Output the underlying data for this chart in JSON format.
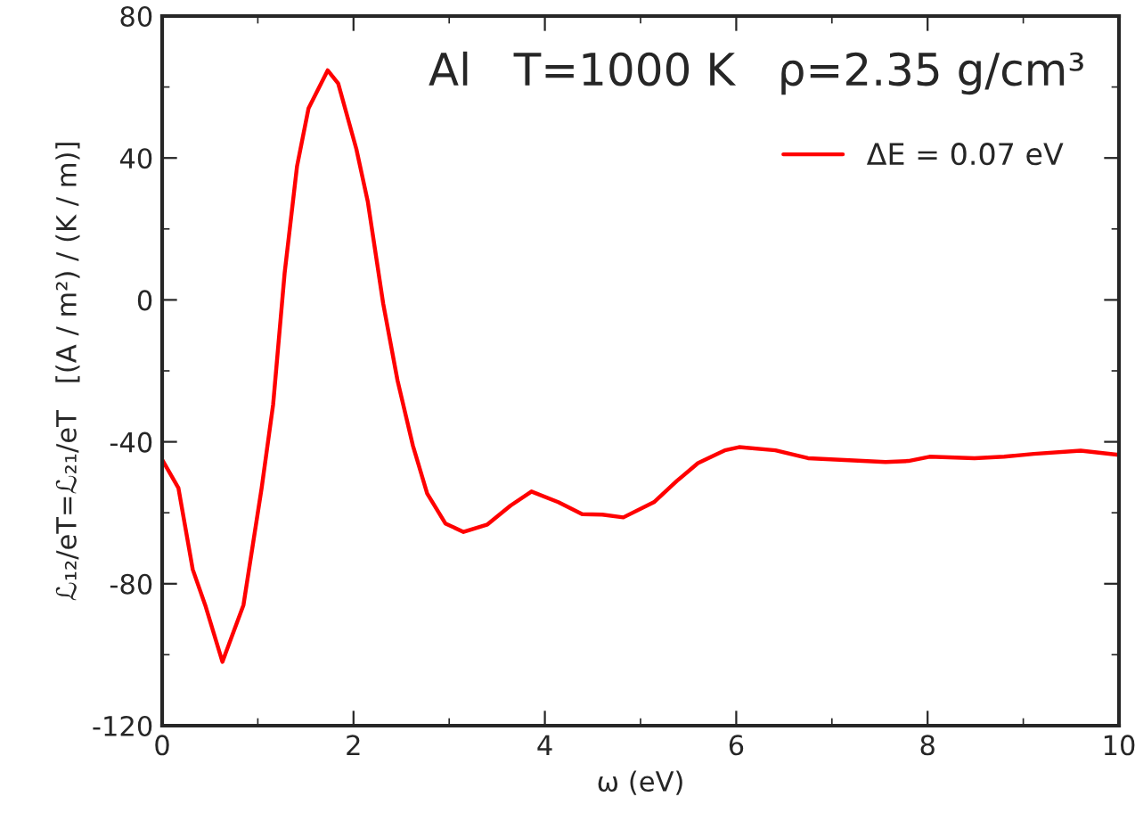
{
  "chart_data": {
    "type": "line",
    "xlabel": "ω (eV)",
    "ylabel": "ℒ₁₂/eT=ℒ₂₁/eT   [(A / m²) / (K / m)]",
    "annotations": [
      "Al   T=1000 K   ρ=2.35 g/cm³"
    ],
    "x": [
      0,
      0.17,
      0.32,
      0.45,
      0.63,
      0.85,
      1.04,
      1.16,
      1.28,
      1.41,
      1.53,
      1.73,
      1.84,
      2.03,
      2.15,
      2.31,
      2.46,
      2.62,
      2.77,
      2.96,
      3.15,
      3.4,
      3.64,
      3.86,
      4.14,
      4.39,
      4.6,
      4.82,
      5.14,
      5.38,
      5.6,
      5.88,
      6.03,
      6.41,
      6.75,
      7.56,
      7.8,
      8.02,
      8.49,
      8.8,
      9.11,
      9.6,
      10
    ],
    "series": [
      {
        "name": "ΔE = 0.07 eV",
        "color": "#ff0000",
        "values": [
          -45,
          -53,
          -76,
          -86,
          -102,
          -86,
          -53,
          -29.5,
          7.5,
          37.7,
          54,
          64.7,
          61,
          42.5,
          27.6,
          -1,
          -22.7,
          -41,
          -54.6,
          -63,
          -65.4,
          -63.3,
          -58,
          -54,
          -57,
          -60.4,
          -60.5,
          -61.3,
          -57,
          -51,
          -46,
          -42.4,
          -41.5,
          -42.4,
          -44.6,
          -45.7,
          -45.4,
          -44.2,
          -44.6,
          -44.2,
          -43.4,
          -42.5,
          -43.7
        ]
      }
    ],
    "xlim": [
      0,
      10
    ],
    "ylim": [
      -120,
      80
    ],
    "xticks": [
      0,
      {
        "value": 1,
        "label": null
      },
      2,
      {
        "value": 3,
        "label": null
      },
      4,
      {
        "value": 5,
        "label": null
      },
      6,
      {
        "value": 7,
        "label": null
      },
      8,
      {
        "value": 9,
        "label": null
      },
      10
    ],
    "yticks": [
      -120,
      {
        "value": -100,
        "label": null
      },
      -80,
      {
        "value": -60,
        "label": null
      },
      -40,
      {
        "value": -20,
        "label": null
      },
      0,
      {
        "value": 20,
        "label": null
      },
      40,
      {
        "value": 60,
        "label": null
      },
      80
    ],
    "grid": false,
    "legend": "top right",
    "marker": "none",
    "line_style": "solid"
  }
}
